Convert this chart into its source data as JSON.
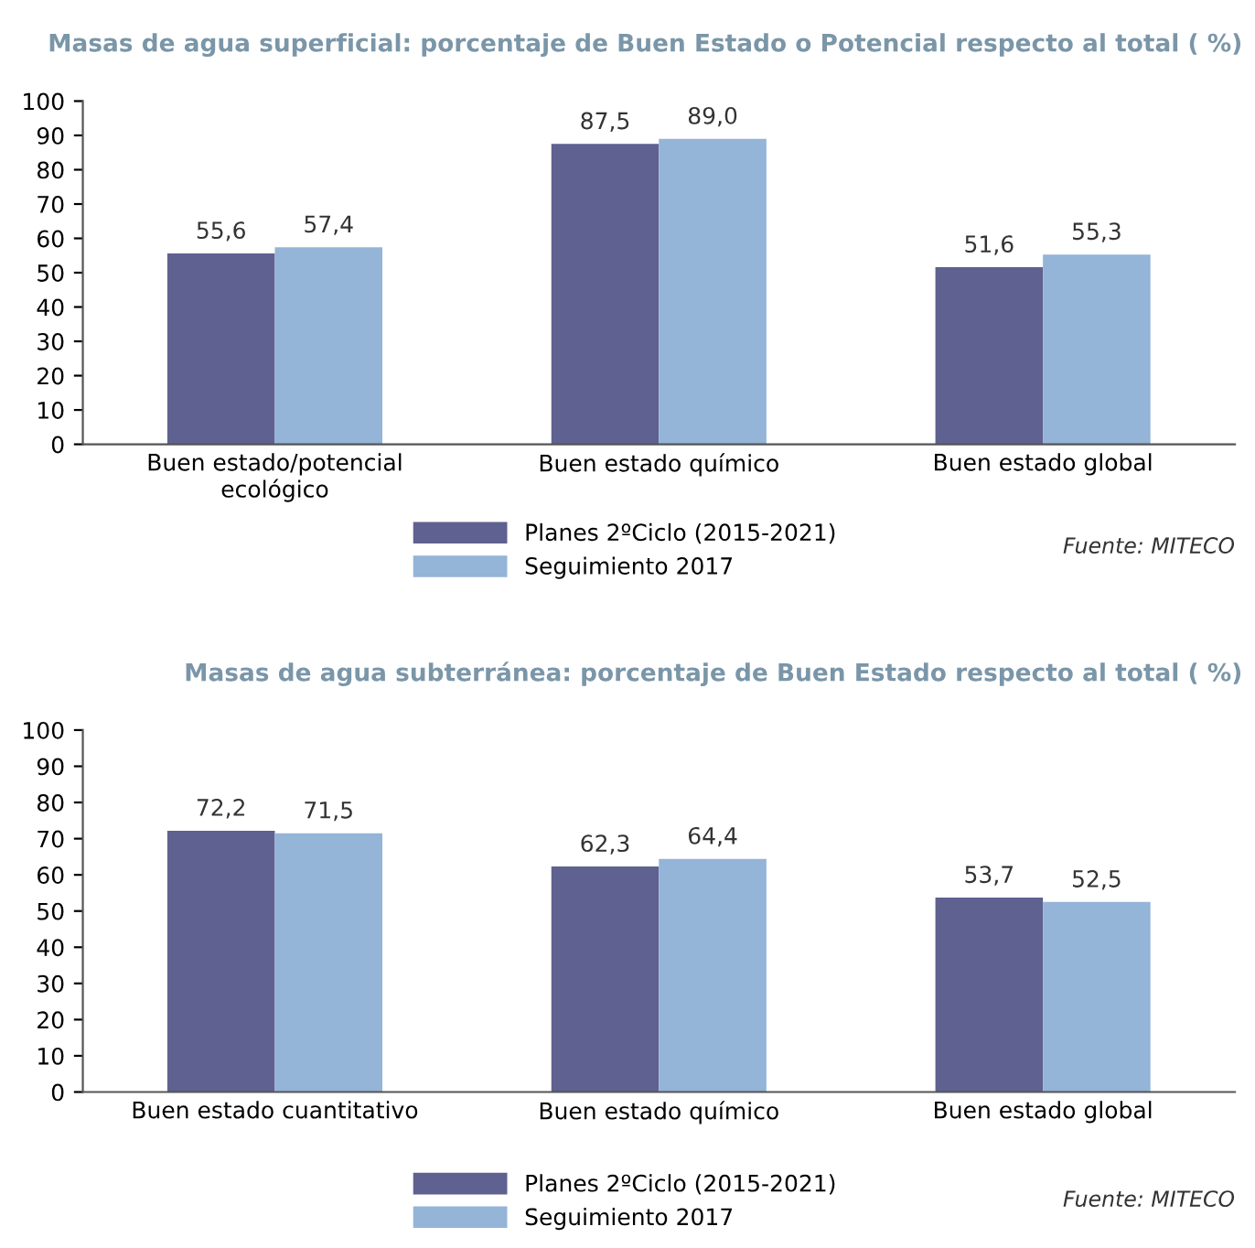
{
  "chart_data": [
    {
      "type": "bar",
      "title": "Masas de agua superficial: porcentaje de Buen Estado o Potencial respecto al total ( %)",
      "categories": [
        "Buen estado/potencial\necológico",
        "Buen estado químico",
        "Buen estado global"
      ],
      "series": [
        {
          "name": "Planes 2ºCiclo (2015-2021)",
          "color": "#5f6190",
          "values": [
            55.6,
            87.5,
            51.6
          ],
          "value_labels": [
            "55,6",
            "87,5",
            "51,6"
          ]
        },
        {
          "name": "Seguimiento 2017",
          "color": "#94b4d8",
          "values": [
            57.4,
            89.0,
            55.3
          ],
          "value_labels": [
            "57,4",
            "89,0",
            "55,3"
          ]
        }
      ],
      "ylim": [
        0,
        100
      ],
      "yticks": [
        0,
        10,
        20,
        30,
        40,
        50,
        60,
        70,
        80,
        90,
        100
      ],
      "grid": false,
      "legend": "bottom",
      "annotations": [
        "Fuente: MITECO"
      ]
    },
    {
      "type": "bar",
      "title": "Masas de agua subterránea: porcentaje de Buen Estado respecto al total ( %)",
      "categories": [
        "Buen estado cuantitativo",
        "Buen estado químico",
        "Buen estado global"
      ],
      "series": [
        {
          "name": "Planes 2ºCiclo (2015-2021)",
          "color": "#5f6190",
          "values": [
            72.2,
            62.3,
            53.7
          ],
          "value_labels": [
            "72,2",
            "62,3",
            "53,7"
          ]
        },
        {
          "name": "Seguimiento 2017",
          "color": "#94b4d8",
          "values": [
            71.5,
            64.4,
            52.5
          ],
          "value_labels": [
            "71,5",
            "64,4",
            "52,5"
          ]
        }
      ],
      "ylim": [
        0,
        100
      ],
      "yticks": [
        0,
        10,
        20,
        30,
        40,
        50,
        60,
        70,
        80,
        90,
        100
      ],
      "grid": false,
      "legend": "bottom",
      "annotations": [
        "Fuente: MITECO"
      ]
    }
  ]
}
